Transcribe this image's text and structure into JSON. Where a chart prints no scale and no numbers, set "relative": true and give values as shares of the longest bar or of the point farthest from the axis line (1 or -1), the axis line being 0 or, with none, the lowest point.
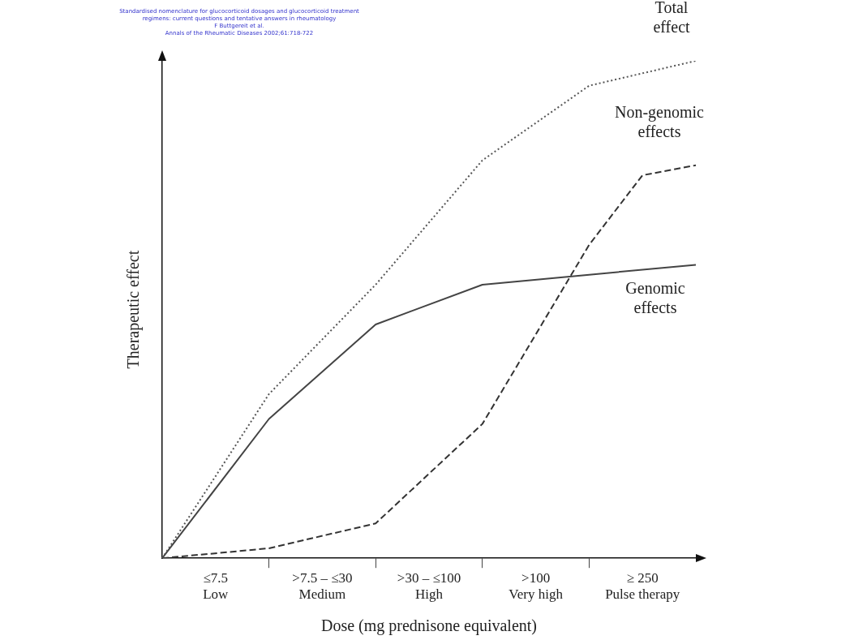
{
  "chart_data": {
    "type": "line",
    "relative": true,
    "xlabel": "Dose (mg prednisone equivalent)",
    "ylabel": "Therapeutic effect",
    "annotations": [
      "Standardised nomenclature for glucocorticoid dosages and glucocorticoid treatment",
      "regimens: current questions and tentative answers in rheumatology",
      "F Buttgereit  et al.",
      "Annals of the Rheumatic Diseases 2002;61:718-722"
    ],
    "categories": [
      null,
      "≤7.5\nLow",
      null,
      ">7.5 – ≤30\nMedium",
      null,
      ">30 – ≤100\nHigh",
      null,
      ">100\nVery high",
      null,
      "≥ 250\nPulse therapy",
      null
    ],
    "grid": false,
    "legend": false,
    "marker": "none",
    "series": [
      {
        "name": "Total effect",
        "color": "#555555",
        "line_style": "dotted",
        "values": [
          0,
          null,
          0.33,
          null,
          0.55,
          null,
          0.8,
          null,
          0.95,
          null,
          1.0
        ]
      },
      {
        "name": "Non-genomic effects",
        "color": "#333333",
        "line_style": "dashed",
        "values": [
          0,
          null,
          0.02,
          null,
          0.07,
          null,
          0.27,
          null,
          0.63,
          0.77,
          0.79
        ]
      },
      {
        "name": "Genomic effects",
        "color": "#444444",
        "line_style": "solid",
        "values": [
          0,
          null,
          0.28,
          null,
          0.47,
          null,
          0.55,
          null,
          0.57,
          null,
          0.59
        ]
      }
    ]
  }
}
